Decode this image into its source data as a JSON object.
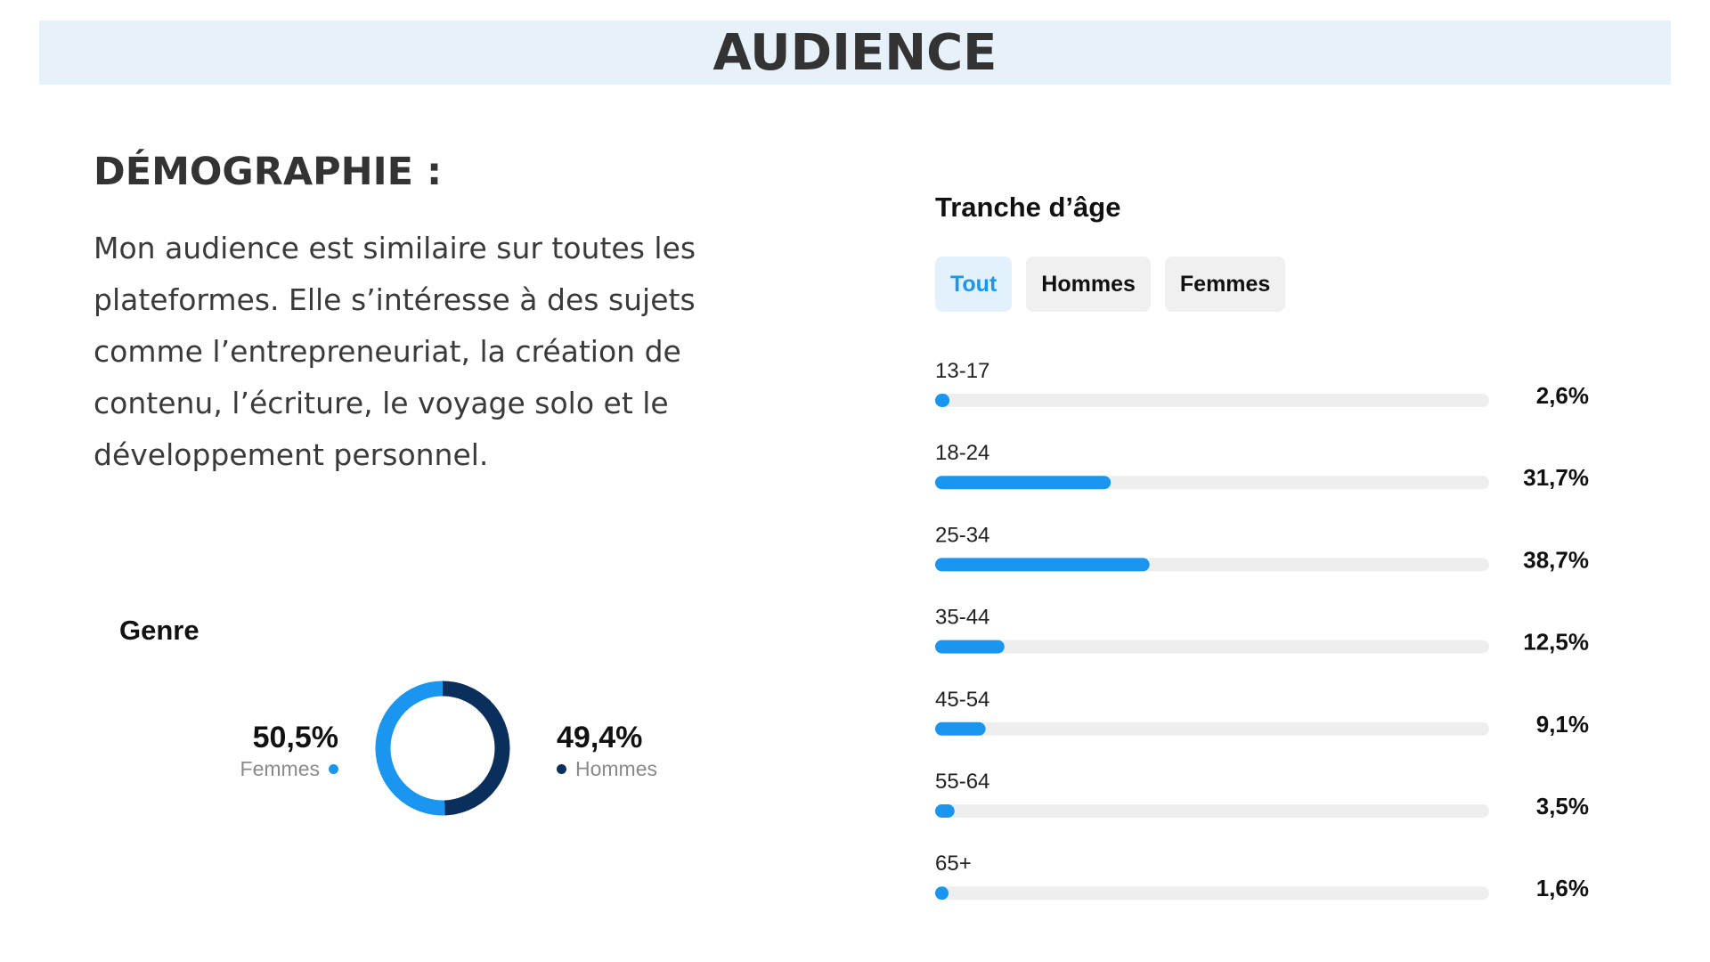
{
  "header": {
    "title": "AUDIENCE"
  },
  "demographics": {
    "heading": "DÉMOGRAPHIE :",
    "description": "Mon audience est similaire sur toutes les plateformes. Elle s’intéresse à des sujets comme l’entrepreneuriat, la création de contenu, l’écriture, le voyage solo et le développement personnel."
  },
  "gender": {
    "title": "Genre",
    "femmes_value": "50,5%",
    "femmes_label": "Femmes",
    "hommes_value": "49,4%",
    "hommes_label": "Hommes"
  },
  "age": {
    "title": "Tranche d’âge",
    "tabs": [
      "Tout",
      "Hommes",
      "Femmes"
    ],
    "active_tab": "Tout"
  },
  "colors": {
    "femmes": "#1a96f0",
    "hommes": "#0a2f5c",
    "bar_fill": "#1a96f0",
    "bar_track": "#eeeeee",
    "title_band": "#e6f1f9"
  },
  "chart_data": [
    {
      "type": "pie",
      "title": "Genre",
      "categories": [
        "Femmes",
        "Hommes"
      ],
      "values": [
        50.5,
        49.4
      ],
      "value_labels": [
        "50,5%",
        "49,4%"
      ],
      "hole": true
    },
    {
      "type": "bar",
      "orientation": "horizontal",
      "title": "Tranche d’âge",
      "categories": [
        "13-17",
        "18-24",
        "25-34",
        "35-44",
        "45-54",
        "55-64",
        "65+"
      ],
      "values": [
        2.6,
        31.7,
        38.7,
        12.5,
        9.1,
        3.5,
        1.6
      ],
      "value_labels": [
        "2,6%",
        "31,7%",
        "38,7%",
        "12,5%",
        "9,1%",
        "3,5%",
        "1,6%"
      ],
      "xlim": [
        0,
        100
      ],
      "grid": false,
      "legend": "none"
    }
  ]
}
